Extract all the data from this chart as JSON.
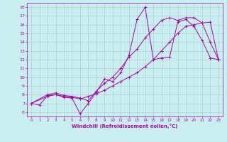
{
  "xlabel": "Windchill (Refroidissement éolien,°C)",
  "bg_color": "#c8eef0",
  "line_color": "#aa00aa",
  "grid_color": "#b0c8c8",
  "xlim": [
    -0.5,
    23.5
  ],
  "ylim": [
    5.5,
    18.5
  ],
  "xticks": [
    0,
    1,
    2,
    3,
    4,
    5,
    6,
    7,
    8,
    9,
    10,
    11,
    12,
    13,
    14,
    15,
    16,
    17,
    18,
    19,
    20,
    21,
    22,
    23
  ],
  "yticks": [
    6,
    7,
    8,
    9,
    10,
    11,
    12,
    13,
    14,
    15,
    16,
    17,
    18
  ],
  "lines": [
    {
      "x": [
        0,
        1,
        2,
        3,
        4,
        5,
        6,
        7,
        8,
        9,
        10,
        11,
        12,
        13,
        14,
        15,
        16,
        17,
        18,
        19,
        20,
        21,
        22,
        23
      ],
      "y": [
        7.0,
        6.8,
        7.9,
        8.0,
        7.7,
        7.6,
        5.8,
        7.0,
        8.3,
        9.8,
        9.5,
        10.5,
        12.5,
        16.6,
        18.0,
        12.0,
        12.2,
        12.3,
        16.3,
        16.6,
        15.8,
        14.2,
        12.2,
        12.0
      ]
    },
    {
      "x": [
        0,
        2,
        3,
        4,
        5,
        6,
        7,
        8,
        9,
        10,
        11,
        12,
        13,
        14,
        15,
        16,
        17,
        18,
        19,
        20,
        21,
        22,
        23
      ],
      "y": [
        7.0,
        7.8,
        8.0,
        7.8,
        7.7,
        7.5,
        7.8,
        8.1,
        8.5,
        9.0,
        9.5,
        10.0,
        10.5,
        11.2,
        12.0,
        13.0,
        14.0,
        15.0,
        15.8,
        16.0,
        16.2,
        16.3,
        12.0
      ]
    },
    {
      "x": [
        0,
        2,
        3,
        4,
        5,
        6,
        7,
        8,
        9,
        10,
        11,
        12,
        13,
        14,
        15,
        16,
        17,
        18,
        19,
        20,
        21,
        22,
        23
      ],
      "y": [
        7.0,
        8.0,
        8.2,
        7.9,
        7.8,
        7.6,
        7.3,
        8.4,
        9.3,
        10.0,
        11.0,
        12.3,
        13.2,
        14.5,
        15.5,
        16.5,
        16.8,
        16.5,
        16.8,
        16.8,
        16.2,
        14.0,
        12.0
      ]
    }
  ]
}
